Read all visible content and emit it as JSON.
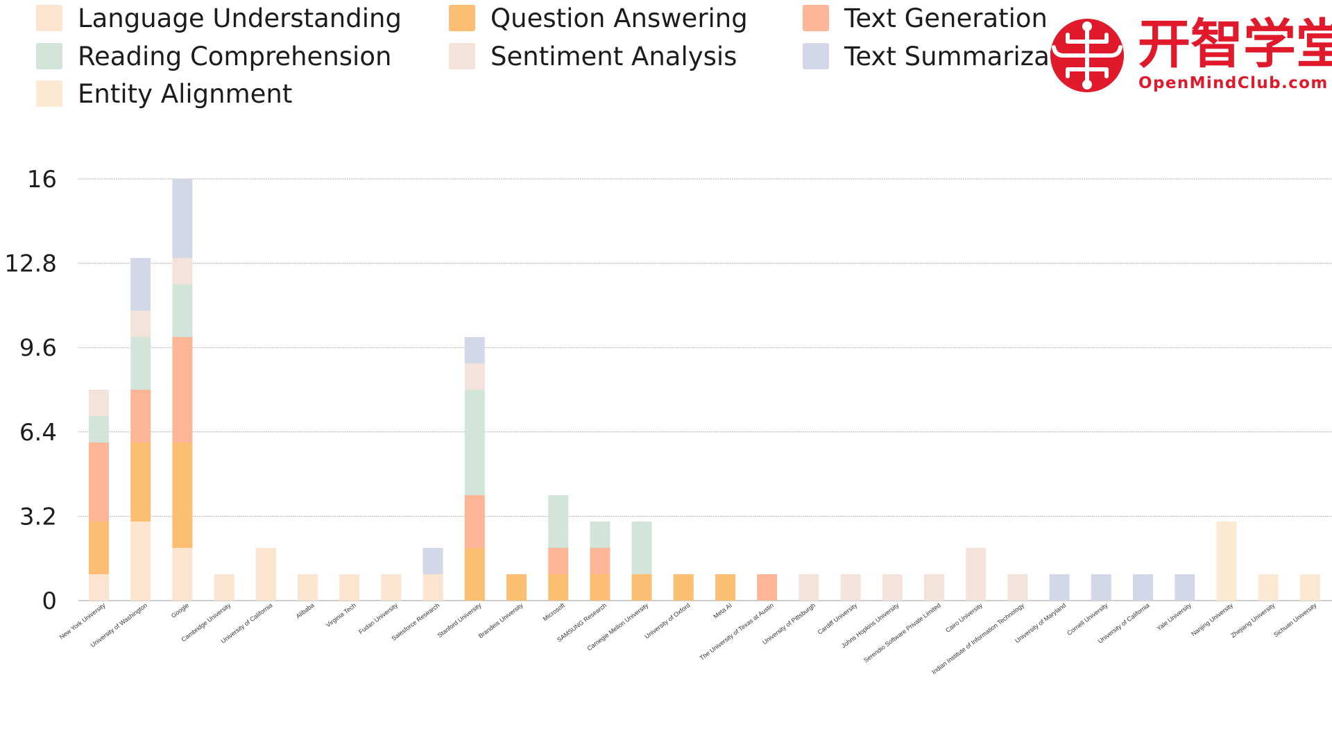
{
  "logo": {
    "cn_text": "开智学堂",
    "en_text": "OpenMindClub.com",
    "color": "#e0192b"
  },
  "chart_data": {
    "type": "bar",
    "stacked": true,
    "title": "",
    "xlabel": "",
    "ylabel": "",
    "ylim": [
      0,
      16
    ],
    "yticks": [
      "0",
      "3.2",
      "6.4",
      "9.6",
      "12.8",
      "16"
    ],
    "grid": true,
    "legend_position": "top",
    "categories": [
      "New York University",
      "University of Washington",
      "Google",
      "Cambridge University",
      "University of California",
      "Alibaba",
      "Virginia Tech",
      "Fudan University",
      "Salesforce Research",
      "Stanford University",
      "Brandeis University",
      "Microsoft",
      "SAMSUNG Research",
      "Carnegie Mellon University",
      "University of Oxford",
      "Meta AI",
      "The University of Texas at Austin",
      "University of Pittsburgh",
      "Cardiff University",
      "Johns Hopkins University",
      "Serendio Software Private Limited",
      "Cairo University",
      "Indian Institute of Information Technology",
      "University of Maryland",
      "Cornell University",
      "University of California",
      "Yale University",
      "Nanjing University",
      "Zhejiang University",
      "Sichuan University"
    ],
    "series": [
      {
        "name": "Language Understanding",
        "color": "#fbe5d0",
        "values": [
          1,
          3,
          2,
          1,
          2,
          1,
          1,
          1,
          1,
          0,
          0,
          0,
          0,
          0,
          0,
          0,
          0,
          0,
          0,
          0,
          0,
          0,
          0,
          0,
          0,
          0,
          0,
          0,
          0,
          0
        ]
      },
      {
        "name": "Question Answering",
        "color": "#fcbe72",
        "values": [
          2,
          3,
          4,
          0,
          0,
          0,
          0,
          0,
          0,
          2,
          1,
          1,
          1,
          1,
          1,
          1,
          0,
          0,
          0,
          0,
          0,
          0,
          0,
          0,
          0,
          0,
          0,
          0,
          0,
          0
        ]
      },
      {
        "name": "Text Generation",
        "color": "#fcb597",
        "values": [
          3,
          2,
          4,
          0,
          0,
          0,
          0,
          0,
          0,
          2,
          0,
          1,
          1,
          0,
          0,
          0,
          1,
          0,
          0,
          0,
          0,
          0,
          0,
          0,
          0,
          0,
          0,
          0,
          0,
          0
        ]
      },
      {
        "name": "Reading Comprehension",
        "color": "#d3e5d8",
        "values": [
          1,
          2,
          2,
          0,
          0,
          0,
          0,
          0,
          0,
          4,
          0,
          2,
          1,
          2,
          0,
          0,
          0,
          0,
          0,
          0,
          0,
          0,
          0,
          0,
          0,
          0,
          0,
          0,
          0,
          0
        ]
      },
      {
        "name": "Sentiment Analysis",
        "color": "#f3e3da",
        "values": [
          1,
          1,
          1,
          0,
          0,
          0,
          0,
          0,
          0,
          1,
          0,
          0,
          0,
          0,
          0,
          0,
          0,
          1,
          1,
          1,
          1,
          2,
          1,
          0,
          0,
          0,
          0,
          0,
          0,
          0
        ]
      },
      {
        "name": "Text Summarization",
        "color": "#d3d8e8",
        "values": [
          0,
          2,
          3,
          0,
          0,
          0,
          0,
          0,
          1,
          1,
          0,
          0,
          0,
          0,
          0,
          0,
          0,
          0,
          0,
          0,
          0,
          0,
          0,
          1,
          1,
          1,
          1,
          0,
          0,
          0
        ]
      },
      {
        "name": "Entity Alignment",
        "color": "#fbe9d3",
        "values": [
          0,
          0,
          0,
          0,
          0,
          0,
          0,
          0,
          0,
          0,
          0,
          0,
          0,
          0,
          0,
          0,
          0,
          0,
          0,
          0,
          0,
          0,
          0,
          0,
          0,
          0,
          0,
          3,
          1,
          1
        ]
      }
    ],
    "legend_order": [
      "Language Understanding",
      "Question Answering",
      "Text Generation",
      "Reading Comprehension",
      "Sentiment Analysis",
      "Text Summarization",
      "Entity Alignment"
    ]
  }
}
